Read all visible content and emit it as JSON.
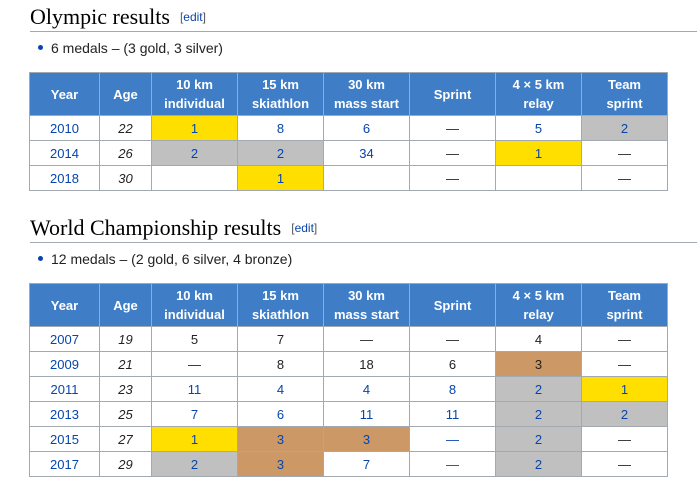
{
  "olympic": {
    "title": "Olympic results",
    "edit_open": "[",
    "edit_label": "edit",
    "edit_close": "]",
    "summary": "6 medals – (3 gold, 3 silver)",
    "headers": [
      {
        "line1": "Year",
        "line2": ""
      },
      {
        "line1": "Age",
        "line2": ""
      },
      {
        "line1": "10 km",
        "line2": "individual"
      },
      {
        "line1": "15 km",
        "line2": "skiathlon"
      },
      {
        "line1": "30 km",
        "line2": "mass start"
      },
      {
        "line1": "Sprint",
        "line2": ""
      },
      {
        "line1": "4 × 5 km",
        "line2": "relay"
      },
      {
        "line1": "Team",
        "line2": "sprint"
      }
    ],
    "rows": [
      {
        "cells": [
          {
            "v": "2010",
            "c": "year"
          },
          {
            "v": "22",
            "c": "age"
          },
          {
            "v": "1",
            "c": "blue gold"
          },
          {
            "v": "8",
            "c": "blue"
          },
          {
            "v": "6",
            "c": "blue"
          },
          {
            "v": "—",
            "c": ""
          },
          {
            "v": "5",
            "c": "blue"
          },
          {
            "v": "2",
            "c": "blue silver"
          }
        ]
      },
      {
        "cells": [
          {
            "v": "2014",
            "c": "year"
          },
          {
            "v": "26",
            "c": "age"
          },
          {
            "v": "2",
            "c": "blue silver"
          },
          {
            "v": "2",
            "c": "blue silver"
          },
          {
            "v": "34",
            "c": "blue"
          },
          {
            "v": "—",
            "c": ""
          },
          {
            "v": "1",
            "c": "blue gold"
          },
          {
            "v": "—",
            "c": ""
          }
        ]
      },
      {
        "cells": [
          {
            "v": "2018",
            "c": "year"
          },
          {
            "v": "30",
            "c": "age"
          },
          {
            "v": "",
            "c": ""
          },
          {
            "v": "1",
            "c": "blue gold"
          },
          {
            "v": "",
            "c": ""
          },
          {
            "v": "—",
            "c": ""
          },
          {
            "v": "",
            "c": ""
          },
          {
            "v": "—",
            "c": ""
          }
        ]
      }
    ]
  },
  "world": {
    "title": "World Championship results",
    "edit_open": "[",
    "edit_label": "edit",
    "edit_close": "]",
    "summary": "12 medals – (2 gold, 6 silver, 4 bronze)",
    "headers": [
      {
        "line1": "Year",
        "line2": ""
      },
      {
        "line1": "Age",
        "line2": ""
      },
      {
        "line1": "10 km",
        "line2": "individual"
      },
      {
        "line1": "15 km",
        "line2": "skiathlon"
      },
      {
        "line1": "30 km",
        "line2": "mass start"
      },
      {
        "line1": "Sprint",
        "line2": ""
      },
      {
        "line1": "4 × 5 km",
        "line2": "relay"
      },
      {
        "line1": "Team",
        "line2": "sprint"
      }
    ],
    "rows": [
      {
        "cells": [
          {
            "v": "2007",
            "c": "year"
          },
          {
            "v": "19",
            "c": "age"
          },
          {
            "v": "5",
            "c": ""
          },
          {
            "v": "7",
            "c": ""
          },
          {
            "v": "—",
            "c": ""
          },
          {
            "v": "—",
            "c": ""
          },
          {
            "v": "4",
            "c": ""
          },
          {
            "v": "—",
            "c": ""
          }
        ]
      },
      {
        "cells": [
          {
            "v": "2009",
            "c": "year"
          },
          {
            "v": "21",
            "c": "age"
          },
          {
            "v": "—",
            "c": ""
          },
          {
            "v": "8",
            "c": ""
          },
          {
            "v": "18",
            "c": ""
          },
          {
            "v": "6",
            "c": ""
          },
          {
            "v": "3",
            "c": "bronze"
          },
          {
            "v": "—",
            "c": ""
          }
        ]
      },
      {
        "cells": [
          {
            "v": "2011",
            "c": "year"
          },
          {
            "v": "23",
            "c": "age"
          },
          {
            "v": "11",
            "c": "blue"
          },
          {
            "v": "4",
            "c": "blue"
          },
          {
            "v": "4",
            "c": "blue"
          },
          {
            "v": "8",
            "c": "blue"
          },
          {
            "v": "2",
            "c": "blue silver"
          },
          {
            "v": "1",
            "c": "blue gold"
          }
        ]
      },
      {
        "cells": [
          {
            "v": "2013",
            "c": "year"
          },
          {
            "v": "25",
            "c": "age"
          },
          {
            "v": "7",
            "c": "blue"
          },
          {
            "v": "6",
            "c": "blue"
          },
          {
            "v": "11",
            "c": "blue"
          },
          {
            "v": "11",
            "c": "blue"
          },
          {
            "v": "2",
            "c": "blue silver"
          },
          {
            "v": "2",
            "c": "blue silver"
          }
        ]
      },
      {
        "cells": [
          {
            "v": "2015",
            "c": "year"
          },
          {
            "v": "27",
            "c": "age"
          },
          {
            "v": "1",
            "c": "blue gold"
          },
          {
            "v": "3",
            "c": "blue bronze"
          },
          {
            "v": "3",
            "c": "blue bronze"
          },
          {
            "v": "—",
            "c": "blue"
          },
          {
            "v": "2",
            "c": "blue silver"
          },
          {
            "v": "—",
            "c": ""
          }
        ]
      },
      {
        "cells": [
          {
            "v": "2017",
            "c": "year"
          },
          {
            "v": "29",
            "c": "age"
          },
          {
            "v": "2",
            "c": "blue silver"
          },
          {
            "v": "3",
            "c": "blue bronze"
          },
          {
            "v": "7",
            "c": "blue"
          },
          {
            "v": "—",
            "c": "blue"
          },
          {
            "v": "2",
            "c": "blue silver"
          },
          {
            "v": "—",
            "c": ""
          }
        ]
      }
    ]
  },
  "colors": {
    "header_bg": "#3f7ec7",
    "gold": "#ffdf00",
    "silver": "#c0c0c0",
    "bronze": "#cc9966",
    "link": "#0645ad"
  }
}
